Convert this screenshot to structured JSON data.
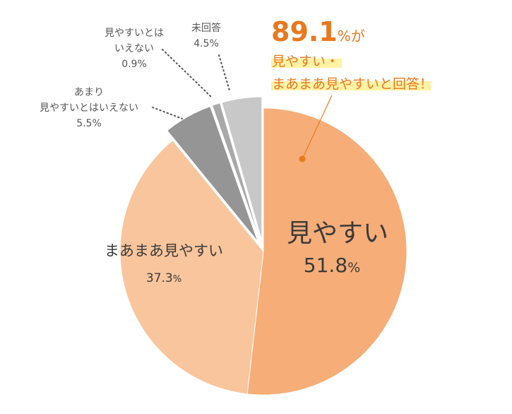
{
  "chart_data": {
    "type": "pie",
    "slices": [
      {
        "label_lines": [
          "見やすい"
        ],
        "value_text": "51.8",
        "unit": "%",
        "value": 51.8,
        "color": "#f6ad77"
      },
      {
        "label_lines": [
          "まあまあ見やすい"
        ],
        "value_text": "37.3",
        "unit": "%",
        "value": 37.3,
        "color": "#f9c59c"
      },
      {
        "label_lines": [
          "あまり",
          "見やすいとはいえない"
        ],
        "value_text": "5.5%",
        "value": 5.5,
        "color": "#959595"
      },
      {
        "label_lines": [
          "見やすいとは",
          "いえない"
        ],
        "value_text": "0.9%",
        "value": 0.9,
        "color": "#a9a9a9"
      },
      {
        "label_lines": [
          "未回答"
        ],
        "value_text": "4.5%",
        "value": 4.5,
        "color": "#c8c8c8"
      }
    ],
    "annotation": {
      "number": "89.1",
      "suffix": "%が",
      "line1": "見やすい・",
      "line2": "まあまあ見やすいと回答！",
      "color": "#e8791f",
      "highlight_color": "#fff3a6"
    }
  }
}
